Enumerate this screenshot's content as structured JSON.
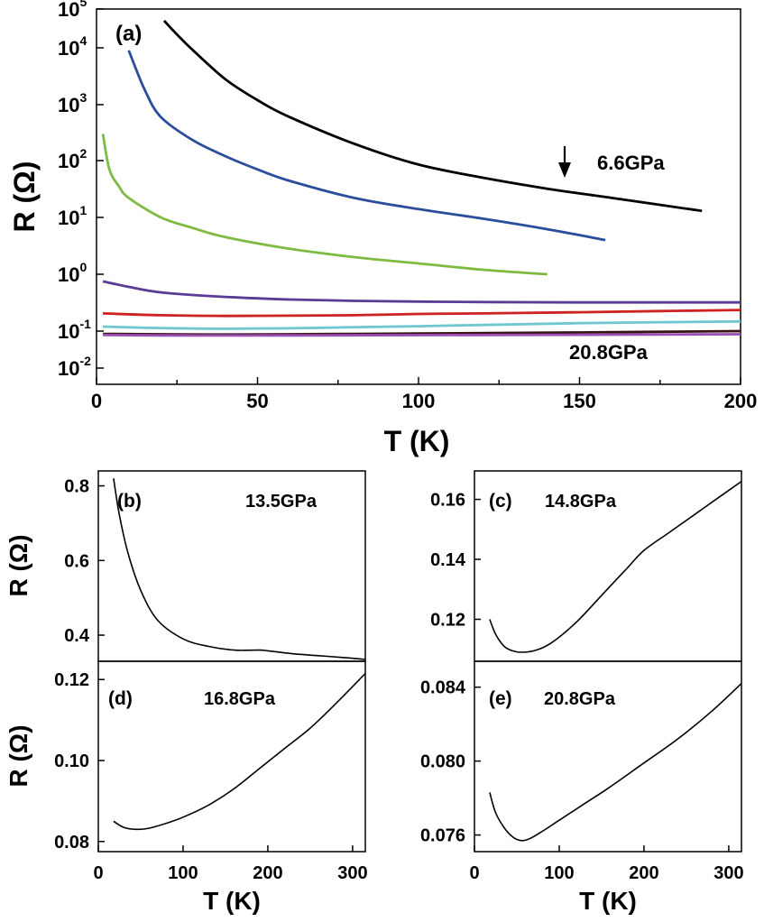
{
  "chart_data": [
    {
      "id": "a",
      "type": "line",
      "panel_label": "(a)",
      "xlabel": "T (K)",
      "ylabel": "R (Ω)",
      "xlim": [
        0,
        200
      ],
      "ylim": [
        0.006,
        100000
      ],
      "yscale": "log",
      "x_ticks": [
        "0",
        "50",
        "100",
        "150",
        "200"
      ],
      "y_ticks": [
        {
          "base": "10",
          "exp": "-2"
        },
        {
          "base": "10",
          "exp": "-1"
        },
        {
          "base": "10",
          "exp": "0"
        },
        {
          "base": "10",
          "exp": "1"
        },
        {
          "base": "10",
          "exp": "2"
        },
        {
          "base": "10",
          "exp": "3"
        },
        {
          "base": "10",
          "exp": "4"
        },
        {
          "base": "10",
          "exp": "5"
        }
      ],
      "annotations": {
        "top": "6.6GPa",
        "bottom": "20.8GPa"
      },
      "series": [
        {
          "color": "#000000",
          "x": [
            21,
            25,
            30,
            40,
            50,
            60,
            80,
            100,
            120,
            140,
            160,
            188
          ],
          "y": [
            50000,
            22000,
            9000,
            2800,
            1200,
            600,
            200,
            85,
            50,
            32,
            22,
            13
          ]
        },
        {
          "color": "#2a4d9c",
          "x": [
            10,
            15,
            20,
            30,
            40,
            50,
            60,
            80,
            100,
            120,
            140,
            158
          ],
          "y": [
            9000,
            1800,
            600,
            230,
            120,
            70,
            44,
            22,
            14,
            9.5,
            6.2,
            4
          ]
        },
        {
          "color": "#7dbb41",
          "x": [
            2,
            4,
            7,
            10,
            20,
            30,
            40,
            60,
            80,
            100,
            120,
            140
          ],
          "y": [
            300,
            70,
            35,
            22,
            10,
            6.5,
            4.5,
            2.8,
            2,
            1.55,
            1.2,
            1
          ]
        },
        {
          "color": "#5a3c96",
          "x": [
            2,
            10,
            20,
            40,
            60,
            80,
            100,
            120,
            150,
            200
          ],
          "y": [
            0.75,
            0.6,
            0.48,
            0.4,
            0.36,
            0.34,
            0.33,
            0.325,
            0.32,
            0.32
          ]
        },
        {
          "color": "#cc2222",
          "x": [
            2,
            20,
            40,
            60,
            80,
            100,
            120,
            150,
            200
          ],
          "y": [
            0.205,
            0.19,
            0.185,
            0.187,
            0.19,
            0.2,
            0.205,
            0.215,
            0.235
          ]
        },
        {
          "color": "#6fc7d0",
          "x": [
            2,
            20,
            40,
            60,
            80,
            100,
            120,
            150,
            200
          ],
          "y": [
            0.12,
            0.113,
            0.11,
            0.112,
            0.117,
            0.122,
            0.128,
            0.138,
            0.148
          ]
        },
        {
          "color": "#3a1414",
          "x": [
            2,
            20,
            40,
            60,
            80,
            100,
            150,
            200
          ],
          "y": [
            0.084,
            0.082,
            0.081,
            0.082,
            0.084,
            0.086,
            0.092,
            0.1
          ]
        },
        {
          "color": "#9a50b4",
          "x": [
            2,
            20,
            40,
            60,
            100,
            150,
            200
          ],
          "y": [
            0.078,
            0.0765,
            0.076,
            0.0762,
            0.0775,
            0.0795,
            0.082
          ]
        }
      ]
    },
    {
      "id": "b",
      "type": "line",
      "panel_label": "(b)",
      "annotation": "13.5GPa",
      "xlim": [
        0,
        315
      ],
      "ylim": [
        0.33,
        0.84
      ],
      "y_ticks": [
        {
          "value": 0.4,
          "label": "0.4"
        },
        {
          "value": 0.6,
          "label": "0.6"
        },
        {
          "value": 0.8,
          "label": "0.8"
        }
      ],
      "series": [
        {
          "color": "#000000",
          "x": [
            18,
            25,
            35,
            50,
            70,
            100,
            130,
            160,
            190,
            200,
            230,
            260,
            290,
            315
          ],
          "y": [
            0.82,
            0.72,
            0.62,
            0.52,
            0.44,
            0.39,
            0.37,
            0.36,
            0.36,
            0.358,
            0.35,
            0.345,
            0.34,
            0.335
          ]
        }
      ]
    },
    {
      "id": "c",
      "type": "line",
      "panel_label": "(c)",
      "annotation": "14.8GPa",
      "xlim": [
        0,
        315
      ],
      "ylim": [
        0.106,
        0.1695
      ],
      "y_ticks": [
        {
          "value": 0.12,
          "label": "0.12"
        },
        {
          "value": 0.14,
          "label": "0.14"
        },
        {
          "value": 0.16,
          "label": "0.16"
        }
      ],
      "series": [
        {
          "color": "#000000",
          "x": [
            18,
            25,
            35,
            45,
            55,
            70,
            90,
            120,
            150,
            180,
            200,
            230,
            260,
            290,
            315
          ],
          "y": [
            0.12,
            0.115,
            0.111,
            0.1095,
            0.109,
            0.1095,
            0.112,
            0.119,
            0.128,
            0.137,
            0.143,
            0.149,
            0.155,
            0.161,
            0.166
          ]
        }
      ]
    },
    {
      "id": "d",
      "type": "line",
      "panel_label": "(d)",
      "annotation": "16.8GPa",
      "xlabel": "T (K)",
      "xlim": [
        0,
        315
      ],
      "ylim": [
        0.0775,
        0.1245
      ],
      "x_ticks": [
        {
          "value": 0,
          "label": "0"
        },
        {
          "value": 100,
          "label": "100"
        },
        {
          "value": 200,
          "label": "200"
        },
        {
          "value": 300,
          "label": "300"
        }
      ],
      "y_ticks": [
        {
          "value": 0.08,
          "label": "0.08"
        },
        {
          "value": 0.1,
          "label": "0.10"
        },
        {
          "value": 0.12,
          "label": "0.12"
        }
      ],
      "series": [
        {
          "color": "#000000",
          "x": [
            18,
            30,
            45,
            60,
            80,
            100,
            130,
            160,
            190,
            220,
            250,
            280,
            315
          ],
          "y": [
            0.085,
            0.0835,
            0.083,
            0.0833,
            0.0845,
            0.086,
            0.089,
            0.093,
            0.098,
            0.103,
            0.108,
            0.114,
            0.1215
          ]
        }
      ]
    },
    {
      "id": "e",
      "type": "line",
      "panel_label": "(e)",
      "annotation": "20.8GPa",
      "xlabel": "T (K)",
      "xlim": [
        0,
        315
      ],
      "ylim": [
        0.0751,
        0.0854
      ],
      "x_ticks": [
        {
          "value": 0,
          "label": "0"
        },
        {
          "value": 100,
          "label": "100"
        },
        {
          "value": 200,
          "label": "200"
        },
        {
          "value": 300,
          "label": "300"
        }
      ],
      "y_ticks": [
        {
          "value": 0.076,
          "label": "0.076"
        },
        {
          "value": 0.08,
          "label": "0.080"
        },
        {
          "value": 0.084,
          "label": "0.084"
        }
      ],
      "series": [
        {
          "color": "#000000",
          "x": [
            18,
            25,
            35,
            45,
            55,
            65,
            80,
            100,
            130,
            160,
            200,
            240,
            280,
            315
          ],
          "y": [
            0.0783,
            0.0772,
            0.0764,
            0.0759,
            0.0757,
            0.0758,
            0.0762,
            0.0768,
            0.0777,
            0.0786,
            0.0799,
            0.0812,
            0.0827,
            0.0842
          ]
        }
      ]
    }
  ],
  "lower_ylabel_top": "R (Ω)",
  "lower_ylabel_bottom": "R (Ω)"
}
